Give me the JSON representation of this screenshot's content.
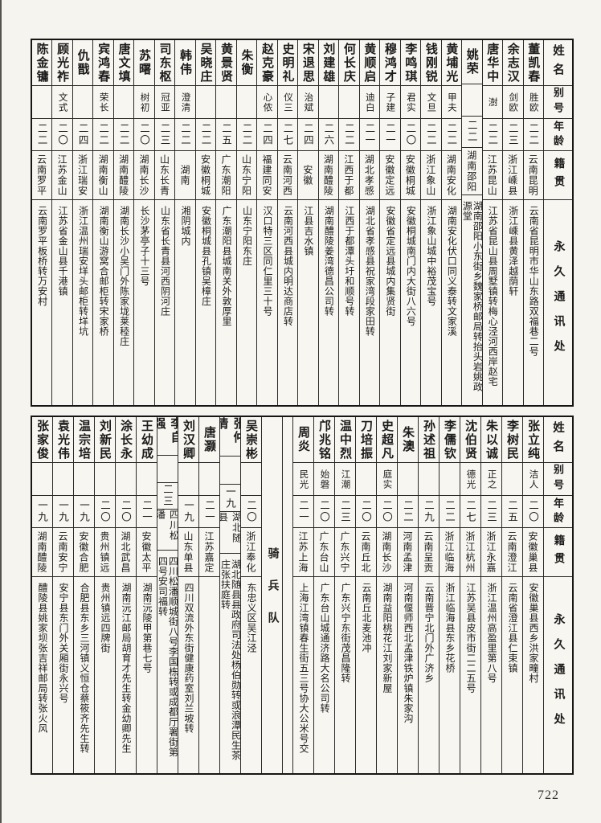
{
  "page": {
    "number": "722"
  },
  "table_headers": {
    "name": "姓名",
    "alias": "别号",
    "age": "年龄",
    "native": "籍贯",
    "address": "永久通讯处"
  },
  "tables": [
    {
      "id": "top",
      "entries": [
        {
          "name": "董凯春",
          "alias": "胜欧",
          "age": "二二",
          "native": "云南昆明",
          "address": "云南省昆明市华山东路双福巷二号"
        },
        {
          "name": "余志汉",
          "alias": "剑欧",
          "age": "二三",
          "native": "浙江嵊县",
          "address": "浙江嵊县黄泽越荫轩"
        },
        {
          "name": "唐华中",
          "alias": "澍",
          "age": "二二",
          "native": "江苏昆山",
          "address": "江苏省昆山县周墅镇转梅心泾河西岸赵宅"
        },
        {
          "name": "姚荣",
          "alias": "",
          "age": "二二",
          "native": "湖南邵阳",
          "address": "湖南邵阳小东街乡魏家桥邮局转抬头岩姚政源堂"
        },
        {
          "name": "黄埔光",
          "alias": "甲夫",
          "age": "二二",
          "native": "湖南安化",
          "address": "湖南安化伏口同义泰转文家溪"
        },
        {
          "name": "钱刚锐",
          "alias": "文旦",
          "age": "二二",
          "native": "浙江象山",
          "address": "浙江象山城中裕茂宝号"
        },
        {
          "name": "李鸣琪",
          "alias": "君实",
          "age": "二〇",
          "native": "安徽桐城",
          "address": "安徽桐城南门内大街八六号"
        },
        {
          "name": "穆鸿才",
          "alias": "子建",
          "age": "二一",
          "native": "安徽定远",
          "address": "安徽省定远县城内集贤街"
        },
        {
          "name": "黄顺启",
          "alias": "迪白",
          "age": "二一",
          "native": "湖北孝感",
          "address": "湖北省孝感县祝家湾段家田转"
        },
        {
          "name": "何长庆",
          "alias": "",
          "age": "二二",
          "native": "江西于都",
          "address": "江西于都潭头圩和顺号转"
        },
        {
          "name": "刘建雄",
          "alias": "",
          "age": "二六",
          "native": "湖南醴陵",
          "address": "湖南醴陵姜湾德昌公司转"
        },
        {
          "name": "宋退思",
          "alias": "治斌",
          "age": "二四",
          "native": "安徽",
          "address": "江县吉水镇"
        },
        {
          "name": "史明礼",
          "alias": "仪三",
          "age": "二七",
          "native": "云南河西",
          "address": "云南河西县城内明达商店转"
        },
        {
          "name": "赵克豪",
          "alias": "心侬",
          "age": "二四",
          "native": "福建同安",
          "address": "汉口特三区同仁里三十号"
        },
        {
          "name": "朱衡",
          "alias": "",
          "age": "二二",
          "native": "山东宁阳",
          "address": "山东宁阳东庄"
        },
        {
          "name": "黄景贤",
          "alias": "",
          "age": "二五",
          "native": "广东潮阳",
          "address": "广东潮阳县城南关外敦厚里"
        },
        {
          "name": "吴晓庄",
          "alias": "",
          "age": "二二",
          "native": "安徽桐城",
          "address": "安徽桐城县孔镇吴樟庄"
        },
        {
          "name": "韩伟",
          "alias": "澄清",
          "age": "二二",
          "native": "湖南",
          "address": "湘阴城内"
        },
        {
          "name": "司东枢",
          "alias": "冠亚",
          "age": "二三",
          "native": "山东长青",
          "address": "山东省长青县河西阴河庄"
        },
        {
          "name": "苏曙",
          "alias": "树初",
          "age": "二〇",
          "native": "湖南长沙",
          "address": "长沙茅亭子十三号"
        },
        {
          "name": "唐文填",
          "alias": "",
          "age": "二二",
          "native": "湖南醴陵",
          "address": "湖南长沙小吴门外陈家垅莱稑庄"
        },
        {
          "name": "宾鸿春",
          "alias": "荣长",
          "age": "二二",
          "native": "湖南衡山",
          "address": "湖南衡山游窝合邮柜转宋家桥"
        },
        {
          "name": "仇戬",
          "alias": "",
          "age": "二四",
          "native": "浙江瑞安",
          "address": "浙江温州瑞安垟头邮柜转垟坑"
        },
        {
          "name": "顾光祚",
          "alias": "文式",
          "age": "二〇",
          "native": "江苏金山",
          "address": "江苏省金山县千港镇"
        },
        {
          "name": "陈金镛",
          "alias": "",
          "age": "二二",
          "native": "云南罗平",
          "address": "云南罗平板桥转万安村"
        }
      ]
    },
    {
      "id": "bottom",
      "entries": [
        {
          "name": "张立纯",
          "alias": "洁人",
          "age": "二〇",
          "native": "安徽巢县",
          "address": "安徽巢县西乡洪家疃村"
        },
        {
          "name": "李树民",
          "alias": "",
          "age": "二五",
          "native": "云南澄江",
          "address": "云南省澄江县仁束镇"
        },
        {
          "name": "朱以诚",
          "alias": "正之",
          "age": "二三",
          "native": "浙江永嘉",
          "address": "浙江温州高盈里第八号"
        },
        {
          "name": "沈伯贤",
          "alias": "德光",
          "age": "二七",
          "native": "浙江杭州",
          "address": "江苏吴县皮市街二二五号"
        },
        {
          "name": "李儒钦",
          "alias": "",
          "age": "二二",
          "native": "浙江临海",
          "address": "浙江临海县东乡花桥"
        },
        {
          "name": "孙述祖",
          "alias": "",
          "age": "二九",
          "native": "云南呈贡",
          "address": "云南晋宁北门外广济乡"
        },
        {
          "name": "朱澳",
          "alias": "",
          "age": "二二",
          "native": "河南孟津",
          "address": "河南偃师西北孟津铁炉镇朱家沟"
        },
        {
          "name": "史超凡",
          "alias": "庭实",
          "age": "二〇",
          "native": "湖南长沙",
          "address": "湖南益阳桃花江刘家新屋"
        },
        {
          "name": "刀培振",
          "alias": "",
          "age": "二〇",
          "native": "云南丘北",
          "address": "云南丘北麦池冲"
        },
        {
          "name": "温中烈",
          "alias": "江潮",
          "age": "二三",
          "native": "广东兴宁",
          "address": "广东兴宁东街茂昌隆转"
        },
        {
          "name": "邝兆铭",
          "alias": "始磐",
          "age": "二〇",
          "native": "广东台山",
          "address": "广东台山城通济路大名公司转"
        },
        {
          "name": "周炎",
          "alias": "民光",
          "age": "二一",
          "native": "江苏上海",
          "address": "上海江湾镇春生街五三号协大公米号交"
        },
        {
          "spacer": true
        },
        {
          "divider": "骑兵队"
        },
        {
          "name": "吴崇彬",
          "alias": "",
          "age": "二〇",
          "native": "浙江奉化",
          "address": "东忠义区吴江泾"
        },
        {
          "name": "张仲清",
          "alias": "",
          "age": "一九",
          "native": "湖北随县",
          "address": "湖北随县县政府司法处杨伯勋转或浪潭民生茶庄张扶庭转"
        },
        {
          "name": "唐灏",
          "alias": "",
          "age": "二一",
          "native": "江苏嘉定",
          "address": ""
        },
        {
          "name": "刘汉卿",
          "alias": "",
          "age": "一九",
          "native": "山东单县",
          "address": "四川双流外东街健康药室刘兰坡转"
        },
        {
          "name": "李自强",
          "alias": "",
          "age": "二三",
          "native": "四川松潘",
          "address": "四川松潘顺城街八号李国栋转或成都厅署街第四号安司福转"
        },
        {
          "name": "王幼成",
          "alias": "",
          "age": "二一",
          "native": "安徽太平",
          "address": "湖南沅陵甲第巷七号"
        },
        {
          "name": "涂长永",
          "alias": "",
          "age": "二〇",
          "native": "湖北武昌",
          "address": "湖南沅江邮局胡育才先生转金幼卿先生"
        },
        {
          "name": "刘新民",
          "alias": "",
          "age": "二〇",
          "native": "贵州镇远",
          "address": "贵州镇远四牌街"
        },
        {
          "name": "温宗培",
          "alias": "",
          "age": "一九",
          "native": "安徽合肥",
          "address": "合肥县东乡三河镇义恒仓蔡筱齐先生转"
        },
        {
          "name": "袁光伟",
          "alias": "",
          "age": "一九",
          "native": "云南安宁",
          "address": "安宁县东门外关厢街永兴号"
        },
        {
          "name": "张家俊",
          "alias": "",
          "age": "一九",
          "native": "湖南醴陵",
          "address": "醴陵县姚家坝张吉祥邮局转张火风"
        }
      ]
    }
  ]
}
